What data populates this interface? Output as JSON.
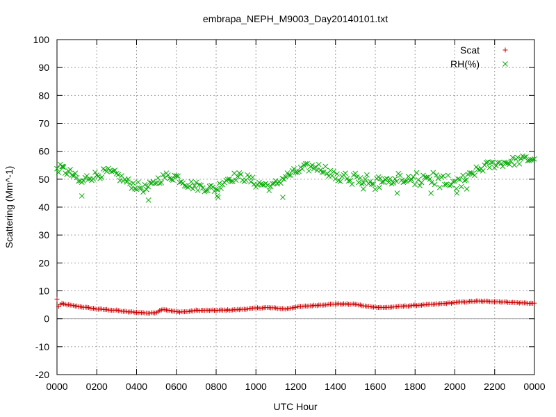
{
  "chart_data": {
    "type": "scatter",
    "title": "embrapa_NEPH_M9003_Day20140101.txt",
    "xlabel": "UTC Hour",
    "ylabel": "Scattering (Mm^-1)",
    "xlim": [
      0,
      24
    ],
    "ylim": [
      -20,
      100
    ],
    "grid": true,
    "legend_position": "top-right",
    "x_tick_labels": [
      "0000",
      "0200",
      "0400",
      "0600",
      "0800",
      "1000",
      "1200",
      "1400",
      "1600",
      "1800",
      "2000",
      "2200",
      "0000"
    ],
    "y_tick_labels": [
      "-20",
      "-10",
      "0",
      "10",
      "20",
      "30",
      "40",
      "50",
      "60",
      "70",
      "80",
      "90",
      "100"
    ],
    "zero_line": true,
    "series": [
      {
        "name": "Scat",
        "marker": "plus",
        "color": "#cc0000",
        "anchors": [
          [
            0.0,
            7.0
          ],
          [
            0.1,
            4.0
          ],
          [
            0.2,
            5.5
          ],
          [
            0.5,
            5.0
          ],
          [
            1.0,
            4.5
          ],
          [
            1.5,
            4.0
          ],
          [
            2.0,
            3.5
          ],
          [
            3.0,
            3.0
          ],
          [
            3.5,
            2.5
          ],
          [
            4.0,
            2.3
          ],
          [
            4.7,
            2.0
          ],
          [
            5.0,
            2.3
          ],
          [
            5.3,
            3.5
          ],
          [
            5.6,
            3.0
          ],
          [
            6.0,
            2.5
          ],
          [
            6.5,
            2.5
          ],
          [
            7.0,
            3.0
          ],
          [
            8.0,
            3.0
          ],
          [
            9.0,
            3.2
          ],
          [
            10.0,
            3.8
          ],
          [
            10.5,
            4.0
          ],
          [
            11.0,
            3.8
          ],
          [
            11.5,
            3.5
          ],
          [
            12.0,
            4.2
          ],
          [
            13.0,
            4.8
          ],
          [
            14.0,
            5.3
          ],
          [
            15.0,
            5.2
          ],
          [
            15.5,
            4.5
          ],
          [
            16.0,
            4.2
          ],
          [
            16.5,
            4.0
          ],
          [
            17.0,
            4.3
          ],
          [
            18.0,
            4.8
          ],
          [
            19.0,
            5.2
          ],
          [
            20.0,
            5.8
          ],
          [
            21.0,
            6.3
          ],
          [
            22.0,
            6.2
          ],
          [
            23.0,
            5.8
          ],
          [
            24.0,
            5.5
          ]
        ],
        "noise": 0.15,
        "step": 0.0833
      },
      {
        "name": "RH(%)",
        "marker": "cross",
        "color": "#00aa00",
        "anchors": [
          [
            0.0,
            54.0
          ],
          [
            0.3,
            53.5
          ],
          [
            0.8,
            51.5
          ],
          [
            1.2,
            48.5
          ],
          [
            1.5,
            50.5
          ],
          [
            2.0,
            51.5
          ],
          [
            2.5,
            52.5
          ],
          [
            3.0,
            51.5
          ],
          [
            3.5,
            49.0
          ],
          [
            4.0,
            47.5
          ],
          [
            4.5,
            46.5
          ],
          [
            4.8,
            48.0
          ],
          [
            5.0,
            49.5
          ],
          [
            5.5,
            51.0
          ],
          [
            6.0,
            51.0
          ],
          [
            6.5,
            48.5
          ],
          [
            7.0,
            47.5
          ],
          [
            7.5,
            47.0
          ],
          [
            8.0,
            46.5
          ],
          [
            8.5,
            50.0
          ],
          [
            9.0,
            51.0
          ],
          [
            9.5,
            50.5
          ],
          [
            10.0,
            48.5
          ],
          [
            10.5,
            48.0
          ],
          [
            10.8,
            47.0
          ],
          [
            11.2,
            49.5
          ],
          [
            11.5,
            51.0
          ],
          [
            12.0,
            52.5
          ],
          [
            12.5,
            54.0
          ],
          [
            13.0,
            54.5
          ],
          [
            13.5,
            53.5
          ],
          [
            14.0,
            51.0
          ],
          [
            14.5,
            50.0
          ],
          [
            15.0,
            50.0
          ],
          [
            15.5,
            50.5
          ],
          [
            16.0,
            49.0
          ],
          [
            16.5,
            49.5
          ],
          [
            17.0,
            50.0
          ],
          [
            17.5,
            49.5
          ],
          [
            18.0,
            49.0
          ],
          [
            18.5,
            51.0
          ],
          [
            19.0,
            50.0
          ],
          [
            19.5,
            48.5
          ],
          [
            20.0,
            47.5
          ],
          [
            20.5,
            49.5
          ],
          [
            21.0,
            52.5
          ],
          [
            21.5,
            54.5
          ],
          [
            22.0,
            55.5
          ],
          [
            22.5,
            56.0
          ],
          [
            23.0,
            56.5
          ],
          [
            23.5,
            57.0
          ],
          [
            24.0,
            57.5
          ]
        ],
        "noise": 1.6,
        "step": 0.0833,
        "outliers": [
          [
            0.3,
            54.5
          ],
          [
            1.25,
            44.0
          ],
          [
            4.6,
            42.5
          ],
          [
            8.05,
            44.0
          ],
          [
            8.1,
            43.5
          ],
          [
            11.35,
            43.5
          ],
          [
            16.2,
            47.0
          ],
          [
            17.1,
            45.0
          ],
          [
            18.8,
            45.0
          ],
          [
            20.1,
            45.0
          ],
          [
            20.6,
            46.5
          ],
          [
            15.4,
            46.5
          ]
        ]
      }
    ]
  }
}
